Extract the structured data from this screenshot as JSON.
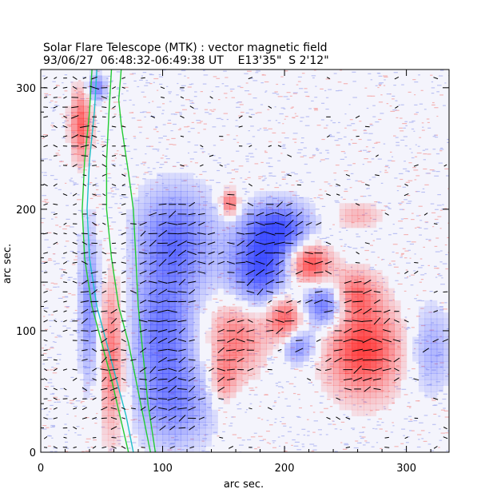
{
  "title": {
    "line1": "Solar Flare Telescope (MTK) : vector magnetic field",
    "line2": "93/06/27  06:48:32-06:49:38 UT    E13'35\"  S 2'12\""
  },
  "colors": {
    "positive": "#ff3030",
    "negative": "#2f3fff",
    "contour_green": "#22cc33",
    "contour_cyan": "#20c0c8",
    "arrows": "#000000"
  },
  "chart_data": {
    "type": "heatmap",
    "description_of_field": "line-of-sight magnetogram with transverse field vectors",
    "xlabel": "arc sec.",
    "ylabel": "arc sec.",
    "xlim": [
      0,
      335
    ],
    "ylim": [
      0,
      315
    ],
    "xticks": [
      0,
      100,
      200,
      300
    ],
    "yticks": [
      0,
      100,
      200,
      300
    ],
    "grid": false,
    "regions": [
      {
        "polarity": "negative",
        "x": 45,
        "y": 300,
        "rx": 8,
        "ry": 10,
        "strength": 0.7
      },
      {
        "polarity": "positive",
        "x": 33,
        "y": 270,
        "rx": 8,
        "ry": 28,
        "strength": 0.8
      },
      {
        "polarity": "negative",
        "x": 40,
        "y": 120,
        "rx": 8,
        "ry": 60,
        "strength": 0.6
      },
      {
        "polarity": "positive",
        "x": 58,
        "y": 80,
        "rx": 10,
        "ry": 60,
        "strength": 0.7
      },
      {
        "polarity": "negative",
        "x": 110,
        "y": 175,
        "rx": 30,
        "ry": 40,
        "strength": 0.75
      },
      {
        "polarity": "negative",
        "x": 100,
        "y": 100,
        "rx": 25,
        "ry": 45,
        "strength": 0.7
      },
      {
        "polarity": "negative",
        "x": 110,
        "y": 40,
        "rx": 30,
        "ry": 35,
        "strength": 0.55
      },
      {
        "polarity": "negative",
        "x": 180,
        "y": 150,
        "rx": 25,
        "ry": 30,
        "strength": 0.95
      },
      {
        "polarity": "negative",
        "x": 195,
        "y": 185,
        "rx": 25,
        "ry": 20,
        "strength": 0.85
      },
      {
        "polarity": "negative",
        "x": 235,
        "y": 122,
        "rx": 18,
        "ry": 18,
        "strength": 0.95
      },
      {
        "polarity": "negative",
        "x": 210,
        "y": 88,
        "rx": 14,
        "ry": 14,
        "strength": 0.7
      },
      {
        "polarity": "negative",
        "x": 320,
        "y": 85,
        "rx": 18,
        "ry": 35,
        "strength": 0.4
      },
      {
        "polarity": "positive",
        "x": 155,
        "y": 205,
        "rx": 7,
        "ry": 10,
        "strength": 0.8
      },
      {
        "polarity": "positive",
        "x": 220,
        "y": 155,
        "rx": 16,
        "ry": 16,
        "strength": 1.0
      },
      {
        "polarity": "positive",
        "x": 200,
        "y": 110,
        "rx": 14,
        "ry": 20,
        "strength": 0.9
      },
      {
        "polarity": "positive",
        "x": 160,
        "y": 95,
        "rx": 22,
        "ry": 30,
        "strength": 0.65
      },
      {
        "polarity": "positive",
        "x": 265,
        "y": 85,
        "rx": 28,
        "ry": 35,
        "strength": 1.0
      },
      {
        "polarity": "positive",
        "x": 255,
        "y": 130,
        "rx": 18,
        "ry": 18,
        "strength": 0.75
      },
      {
        "polarity": "positive",
        "x": 150,
        "y": 60,
        "rx": 10,
        "ry": 18,
        "strength": 0.5
      },
      {
        "polarity": "positive",
        "x": 260,
        "y": 195,
        "rx": 18,
        "ry": 10,
        "strength": 0.35
      }
    ],
    "contours": [
      {
        "color": "green",
        "points": [
          [
            42,
            315
          ],
          [
            40,
            280
          ],
          [
            36,
            240
          ],
          [
            34,
            200
          ],
          [
            36,
            160
          ],
          [
            42,
            120
          ],
          [
            50,
            90
          ],
          [
            58,
            60
          ],
          [
            65,
            30
          ],
          [
            72,
            0
          ]
        ]
      },
      {
        "color": "cyan",
        "points": [
          [
            46,
            315
          ],
          [
            44,
            280
          ],
          [
            40,
            240
          ],
          [
            38,
            200
          ],
          [
            40,
            160
          ],
          [
            46,
            120
          ],
          [
            54,
            90
          ],
          [
            62,
            60
          ],
          [
            70,
            30
          ],
          [
            76,
            0
          ]
        ]
      },
      {
        "color": "green",
        "points": [
          [
            58,
            315
          ],
          [
            56,
            280
          ],
          [
            54,
            240
          ],
          [
            54,
            200
          ],
          [
            58,
            160
          ],
          [
            64,
            120
          ],
          [
            72,
            90
          ],
          [
            78,
            60
          ],
          [
            84,
            30
          ],
          [
            90,
            0
          ]
        ]
      },
      {
        "color": "green",
        "points": [
          [
            66,
            315
          ],
          [
            64,
            290
          ],
          [
            66,
            270
          ],
          [
            72,
            230
          ],
          [
            76,
            200
          ],
          [
            78,
            160
          ],
          [
            80,
            120
          ],
          [
            84,
            80
          ],
          [
            88,
            40
          ],
          [
            94,
            0
          ]
        ]
      }
    ]
  }
}
